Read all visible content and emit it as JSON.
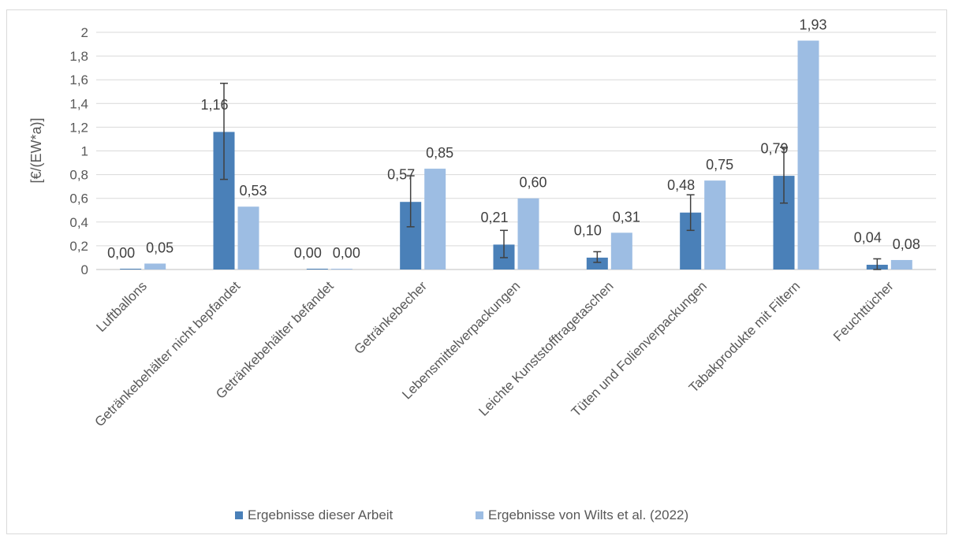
{
  "chart_data": {
    "type": "bar",
    "ylabel": "[€/(EW*a)]",
    "xlabel": "",
    "ylim": [
      0,
      2
    ],
    "yticks": [
      "0",
      "0,2",
      "0,4",
      "0,6",
      "0,8",
      "1",
      "1,2",
      "1,4",
      "1,6",
      "1,8",
      "2"
    ],
    "grid": "horizontal",
    "legend_position": "bottom",
    "categories": [
      "Luftballons",
      "Getränkebehälter nicht bepfandet",
      "Getränkebehälter befandet",
      "Getränkebecher",
      "Lebensmittelverpackungen",
      "Leichte Kunststofftragetaschen",
      "Tüten und Folienverpackungen",
      "Tabakprodukte mit Filtern",
      "Feuchttücher"
    ],
    "series": [
      {
        "name": "Ergebnisse dieser Arbeit",
        "color": "#4a80b8",
        "values": [
          0.0,
          1.16,
          0.0,
          0.57,
          0.21,
          0.1,
          0.48,
          0.79,
          0.04
        ],
        "labels": [
          "0,00",
          "1,16",
          "0,00",
          "0,57",
          "0,21",
          "0,10",
          "0,48",
          "0,79",
          "0,04"
        ],
        "error_low": [
          null,
          0.76,
          null,
          0.36,
          0.1,
          0.06,
          0.33,
          0.56,
          0.0
        ],
        "error_high": [
          null,
          1.57,
          null,
          0.79,
          0.33,
          0.15,
          0.63,
          1.03,
          0.09
        ]
      },
      {
        "name": "Ergebnisse von Wilts et al. (2022)",
        "color": "#9dbde3",
        "values": [
          0.05,
          0.53,
          0.0,
          0.85,
          0.6,
          0.31,
          0.75,
          1.93,
          0.08
        ],
        "labels": [
          "0,05",
          "0,53",
          "0,00",
          "0,85",
          "0,60",
          "0,31",
          "0,75",
          "1,93",
          "0,08"
        ]
      }
    ]
  }
}
